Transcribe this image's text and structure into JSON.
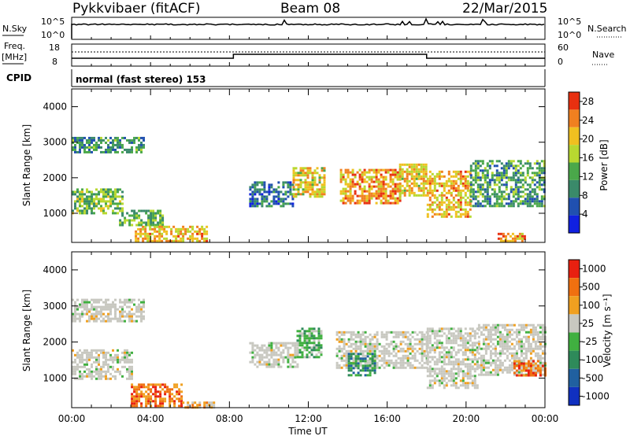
{
  "header": {
    "radar": "Pykkvibaer (fitACF)",
    "beam": "Beam 08",
    "date": "22/Mar/2015"
  },
  "top_panels": {
    "nsky_label": "N.Sky",
    "nsky_ticks": [
      "10^5",
      "10^0"
    ],
    "nsearch_label": "N.Search",
    "nsearch_ticks": [
      "10^5",
      "10^0"
    ],
    "freq_label": "Freq.",
    "freq_unit": "[MHz]",
    "freq_ticks": [
      "18",
      "8"
    ],
    "nave_label": "Nave",
    "nave_ticks": [
      "60",
      "0"
    ],
    "cpid_label": "CPID",
    "cpid_text": "normal (fast stereo) 153"
  },
  "chart_data": [
    {
      "type": "heatmap",
      "panel": "power",
      "ylabel": "Slant Range [km]",
      "y_ticks": [
        "1000",
        "2000",
        "3000",
        "4000"
      ],
      "ylim": [
        180,
        4500
      ],
      "xlim": [
        0,
        24
      ],
      "colorbar_label": "Power [dB]",
      "colorbar_ticks": [
        "4",
        "8",
        "12",
        "16",
        "20",
        "24",
        "28"
      ],
      "colorbar_range": [
        0,
        30
      ],
      "colorbar_colors": [
        "#1020e0",
        "#2050b0",
        "#3a8a6a",
        "#4aa84a",
        "#b8d830",
        "#f0c020",
        "#f08020",
        "#e83010"
      ],
      "regions": [
        {
          "t0": 0.0,
          "t1": 3.6,
          "r0": 2700,
          "r1": 3150,
          "level": 9
        },
        {
          "t0": 0.0,
          "t1": 2.6,
          "r0": 1000,
          "r1": 1700,
          "level": 14
        },
        {
          "t0": 2.4,
          "t1": 4.6,
          "r0": 700,
          "r1": 1100,
          "level": 13
        },
        {
          "t0": 3.2,
          "t1": 6.8,
          "r0": 200,
          "r1": 650,
          "level": 22
        },
        {
          "t0": 9.0,
          "t1": 11.2,
          "r0": 1200,
          "r1": 1900,
          "level": 7
        },
        {
          "t0": 11.2,
          "t1": 12.8,
          "r0": 1500,
          "r1": 2300,
          "level": 20
        },
        {
          "t0": 13.6,
          "t1": 16.6,
          "r0": 1300,
          "r1": 2250,
          "level": 24
        },
        {
          "t0": 16.6,
          "t1": 18.0,
          "r0": 1500,
          "r1": 2400,
          "level": 21
        },
        {
          "t0": 18.0,
          "t1": 20.2,
          "r0": 900,
          "r1": 2200,
          "level": 22
        },
        {
          "t0": 20.2,
          "t1": 24.0,
          "r0": 1200,
          "r1": 2500,
          "level": 11
        },
        {
          "t0": 21.6,
          "t1": 23.0,
          "r0": 250,
          "r1": 450,
          "level": 25
        }
      ]
    },
    {
      "type": "heatmap",
      "panel": "velocity",
      "ylabel": "Slant Range [km]",
      "y_ticks": [
        "1000",
        "2000",
        "3000",
        "4000"
      ],
      "ylim": [
        180,
        4500
      ],
      "xlim": [
        0,
        24
      ],
      "colorbar_label": "Velocity [m s⁻¹]",
      "colorbar_ticks": [
        "1000",
        "500",
        "100",
        "25",
        "-25",
        "-100",
        "-500",
        "-1000"
      ],
      "colorbar_colors": [
        "#1030c0",
        "#2060a0",
        "#2e8a5a",
        "#40b040",
        "#c8c8c0",
        "#f0a020",
        "#f07010",
        "#e82010"
      ],
      "regions": [
        {
          "t0": 0.0,
          "t1": 3.6,
          "r0": 2600,
          "r1": 3200,
          "level": 4
        },
        {
          "t0": 0.0,
          "t1": 3.0,
          "r0": 1000,
          "r1": 1800,
          "level": 4
        },
        {
          "t0": 3.0,
          "t1": 5.6,
          "r0": 250,
          "r1": 850,
          "level": 6
        },
        {
          "t0": 5.6,
          "t1": 7.2,
          "r0": 180,
          "r1": 350,
          "level": 5
        },
        {
          "t0": 9.0,
          "t1": 11.4,
          "r0": 1300,
          "r1": 2000,
          "level": 4
        },
        {
          "t0": 11.4,
          "t1": 12.6,
          "r0": 1600,
          "r1": 2400,
          "level": 3
        },
        {
          "t0": 13.4,
          "t1": 18.0,
          "r0": 1300,
          "r1": 2300,
          "level": 4
        },
        {
          "t0": 14.0,
          "t1": 15.4,
          "r0": 1100,
          "r1": 1700,
          "level": 2
        },
        {
          "t0": 18.0,
          "t1": 20.6,
          "r0": 700,
          "r1": 2400,
          "level": 4
        },
        {
          "t0": 20.6,
          "t1": 24.0,
          "r0": 1100,
          "r1": 2500,
          "level": 4
        },
        {
          "t0": 22.4,
          "t1": 24.0,
          "r0": 1100,
          "r1": 1500,
          "level": 6
        }
      ]
    }
  ],
  "x_axis": {
    "label": "Time UT",
    "ticks": [
      "00:00",
      "04:00",
      "08:00",
      "12:00",
      "16:00",
      "20:00",
      "00:00"
    ]
  }
}
